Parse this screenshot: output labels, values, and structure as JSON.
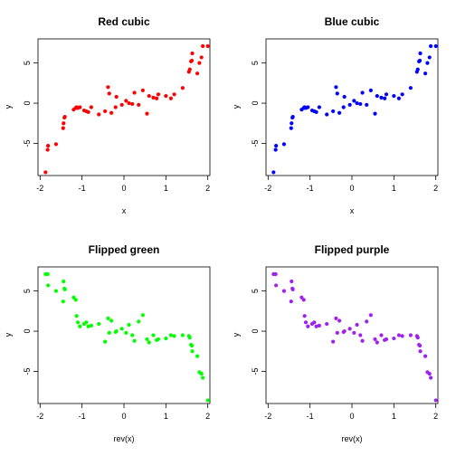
{
  "chart_data": [
    {
      "type": "scatter",
      "title": "Red cubic",
      "xlabel": "x",
      "ylabel": "y",
      "xlim": [
        -2.05,
        2.05
      ],
      "ylim": [
        -9,
        8
      ],
      "xticks": [
        "-2",
        "-1",
        "0",
        "1",
        "2"
      ],
      "yticks": [
        "-5",
        "0",
        "5"
      ],
      "color": "#ff0000",
      "x": [
        -1.87,
        -1.82,
        -1.81,
        -1.62,
        -1.45,
        -1.44,
        -1.42,
        -1.41,
        -1.2,
        -1.15,
        -1.13,
        -1.1,
        -1.05,
        -0.95,
        -0.9,
        -0.85,
        -0.78,
        -0.6,
        -0.45,
        -0.38,
        -0.35,
        -0.3,
        -0.2,
        -0.18,
        -0.05,
        0.05,
        0.12,
        0.2,
        0.25,
        0.35,
        0.45,
        0.55,
        0.6,
        0.7,
        0.78,
        0.82,
        1.0,
        1.12,
        1.2,
        1.4,
        1.55,
        1.57,
        1.6,
        1.62,
        1.63,
        1.75,
        1.8,
        1.85,
        1.88,
        2.0
      ],
      "y": [
        -8.6,
        -5.8,
        -5.3,
        -5.1,
        -3.1,
        -2.5,
        -1.8,
        -1.7,
        -0.8,
        -0.6,
        -0.5,
        -0.6,
        -0.5,
        -0.9,
        -1.0,
        -1.1,
        -0.5,
        -1.4,
        -1.0,
        2.0,
        1.2,
        -1.2,
        -0.5,
        0.8,
        -0.2,
        0.3,
        0.0,
        -0.1,
        1.3,
        -0.2,
        1.6,
        -1.3,
        0.9,
        0.7,
        0.6,
        1.1,
        0.9,
        0.6,
        1.1,
        1.9,
        3.9,
        4.2,
        5.2,
        5.3,
        6.2,
        3.7,
        5.0,
        5.7,
        7.1,
        7.1
      ]
    },
    {
      "type": "scatter",
      "title": "Blue cubic",
      "xlabel": "x",
      "ylabel": "y",
      "xlim": [
        -2.05,
        2.05
      ],
      "ylim": [
        -9,
        8
      ],
      "xticks": [
        "-2",
        "-1",
        "0",
        "1",
        "2"
      ],
      "yticks": [
        "-5",
        "0",
        "5"
      ],
      "color": "#0000ff",
      "x": [
        -1.87,
        -1.82,
        -1.81,
        -1.62,
        -1.45,
        -1.44,
        -1.42,
        -1.41,
        -1.2,
        -1.15,
        -1.13,
        -1.1,
        -1.05,
        -0.95,
        -0.9,
        -0.85,
        -0.78,
        -0.6,
        -0.45,
        -0.38,
        -0.35,
        -0.3,
        -0.2,
        -0.18,
        -0.05,
        0.05,
        0.12,
        0.2,
        0.25,
        0.35,
        0.45,
        0.55,
        0.6,
        0.7,
        0.78,
        0.82,
        1.0,
        1.12,
        1.2,
        1.4,
        1.55,
        1.57,
        1.6,
        1.62,
        1.63,
        1.75,
        1.8,
        1.85,
        1.88,
        2.0
      ],
      "y": [
        -8.6,
        -5.8,
        -5.3,
        -5.1,
        -3.1,
        -2.5,
        -1.8,
        -1.7,
        -0.8,
        -0.6,
        -0.5,
        -0.6,
        -0.5,
        -0.9,
        -1.0,
        -1.1,
        -0.5,
        -1.4,
        -1.0,
        2.0,
        1.2,
        -1.2,
        -0.5,
        0.8,
        -0.2,
        0.3,
        0.0,
        -0.1,
        1.3,
        -0.2,
        1.6,
        -1.3,
        0.9,
        0.7,
        0.6,
        1.1,
        0.9,
        0.6,
        1.1,
        1.9,
        3.9,
        4.2,
        5.2,
        5.3,
        6.2,
        3.7,
        5.0,
        5.7,
        7.1,
        7.1
      ]
    },
    {
      "type": "scatter",
      "title": "Flipped green",
      "xlabel": "rev(x)",
      "ylabel": "y",
      "xlim": [
        -2.05,
        2.05
      ],
      "ylim": [
        -9,
        8
      ],
      "xticks": [
        "-2",
        "-1",
        "0",
        "1",
        "2"
      ],
      "yticks": [
        "-5",
        "0",
        "5"
      ],
      "color": "#00ff00",
      "x": [
        2.0,
        1.88,
        1.85,
        1.8,
        1.75,
        1.63,
        1.62,
        1.6,
        1.57,
        1.55,
        1.4,
        1.2,
        1.12,
        1.0,
        0.82,
        0.78,
        0.7,
        0.6,
        0.55,
        0.45,
        0.35,
        0.25,
        0.2,
        0.12,
        0.05,
        -0.05,
        -0.18,
        -0.2,
        -0.3,
        -0.35,
        -0.38,
        -0.45,
        -0.6,
        -0.78,
        -0.85,
        -0.9,
        -0.95,
        -1.05,
        -1.1,
        -1.13,
        -1.15,
        -1.2,
        -1.41,
        -1.42,
        -1.44,
        -1.45,
        -1.62,
        -1.81,
        -1.82,
        -1.87
      ],
      "y": [
        -8.6,
        -5.8,
        -5.3,
        -5.1,
        -3.1,
        -2.5,
        -1.8,
        -1.7,
        -0.8,
        -0.6,
        -0.5,
        -0.6,
        -0.5,
        -0.9,
        -1.0,
        -1.1,
        -0.5,
        -1.4,
        -1.0,
        2.0,
        1.2,
        -1.2,
        -0.5,
        0.8,
        -0.2,
        0.3,
        0.0,
        -0.1,
        1.3,
        -0.2,
        1.6,
        -1.3,
        0.9,
        0.7,
        0.6,
        1.1,
        0.9,
        0.6,
        1.1,
        1.9,
        3.9,
        4.2,
        5.2,
        5.3,
        6.2,
        3.7,
        5.0,
        5.7,
        7.1,
        7.1
      ]
    },
    {
      "type": "scatter",
      "title": "Flipped purple",
      "xlabel": "rev(x)",
      "ylabel": "y",
      "xlim": [
        -2.05,
        2.05
      ],
      "ylim": [
        -9,
        8
      ],
      "xticks": [
        "-2",
        "-1",
        "0",
        "1",
        "2"
      ],
      "yticks": [
        "-5",
        "0",
        "5"
      ],
      "color": "#a020f0",
      "x": [
        2.0,
        1.88,
        1.85,
        1.8,
        1.75,
        1.63,
        1.62,
        1.6,
        1.57,
        1.55,
        1.4,
        1.2,
        1.12,
        1.0,
        0.82,
        0.78,
        0.7,
        0.6,
        0.55,
        0.45,
        0.35,
        0.25,
        0.2,
        0.12,
        0.05,
        -0.05,
        -0.18,
        -0.2,
        -0.3,
        -0.35,
        -0.38,
        -0.45,
        -0.6,
        -0.78,
        -0.85,
        -0.9,
        -0.95,
        -1.05,
        -1.1,
        -1.13,
        -1.15,
        -1.2,
        -1.41,
        -1.42,
        -1.44,
        -1.45,
        -1.62,
        -1.81,
        -1.82,
        -1.87
      ],
      "y": [
        -8.6,
        -5.8,
        -5.3,
        -5.1,
        -3.1,
        -2.5,
        -1.8,
        -1.7,
        -0.8,
        -0.6,
        -0.5,
        -0.6,
        -0.5,
        -0.9,
        -1.0,
        -1.1,
        -0.5,
        -1.4,
        -1.0,
        2.0,
        1.2,
        -1.2,
        -0.5,
        0.8,
        -0.2,
        0.3,
        0.0,
        -0.1,
        1.3,
        -0.2,
        1.6,
        -1.3,
        0.9,
        0.7,
        0.6,
        1.1,
        0.9,
        0.6,
        1.1,
        1.9,
        3.9,
        4.2,
        5.2,
        5.3,
        6.2,
        3.7,
        5.0,
        5.7,
        7.1,
        7.1
      ]
    }
  ]
}
